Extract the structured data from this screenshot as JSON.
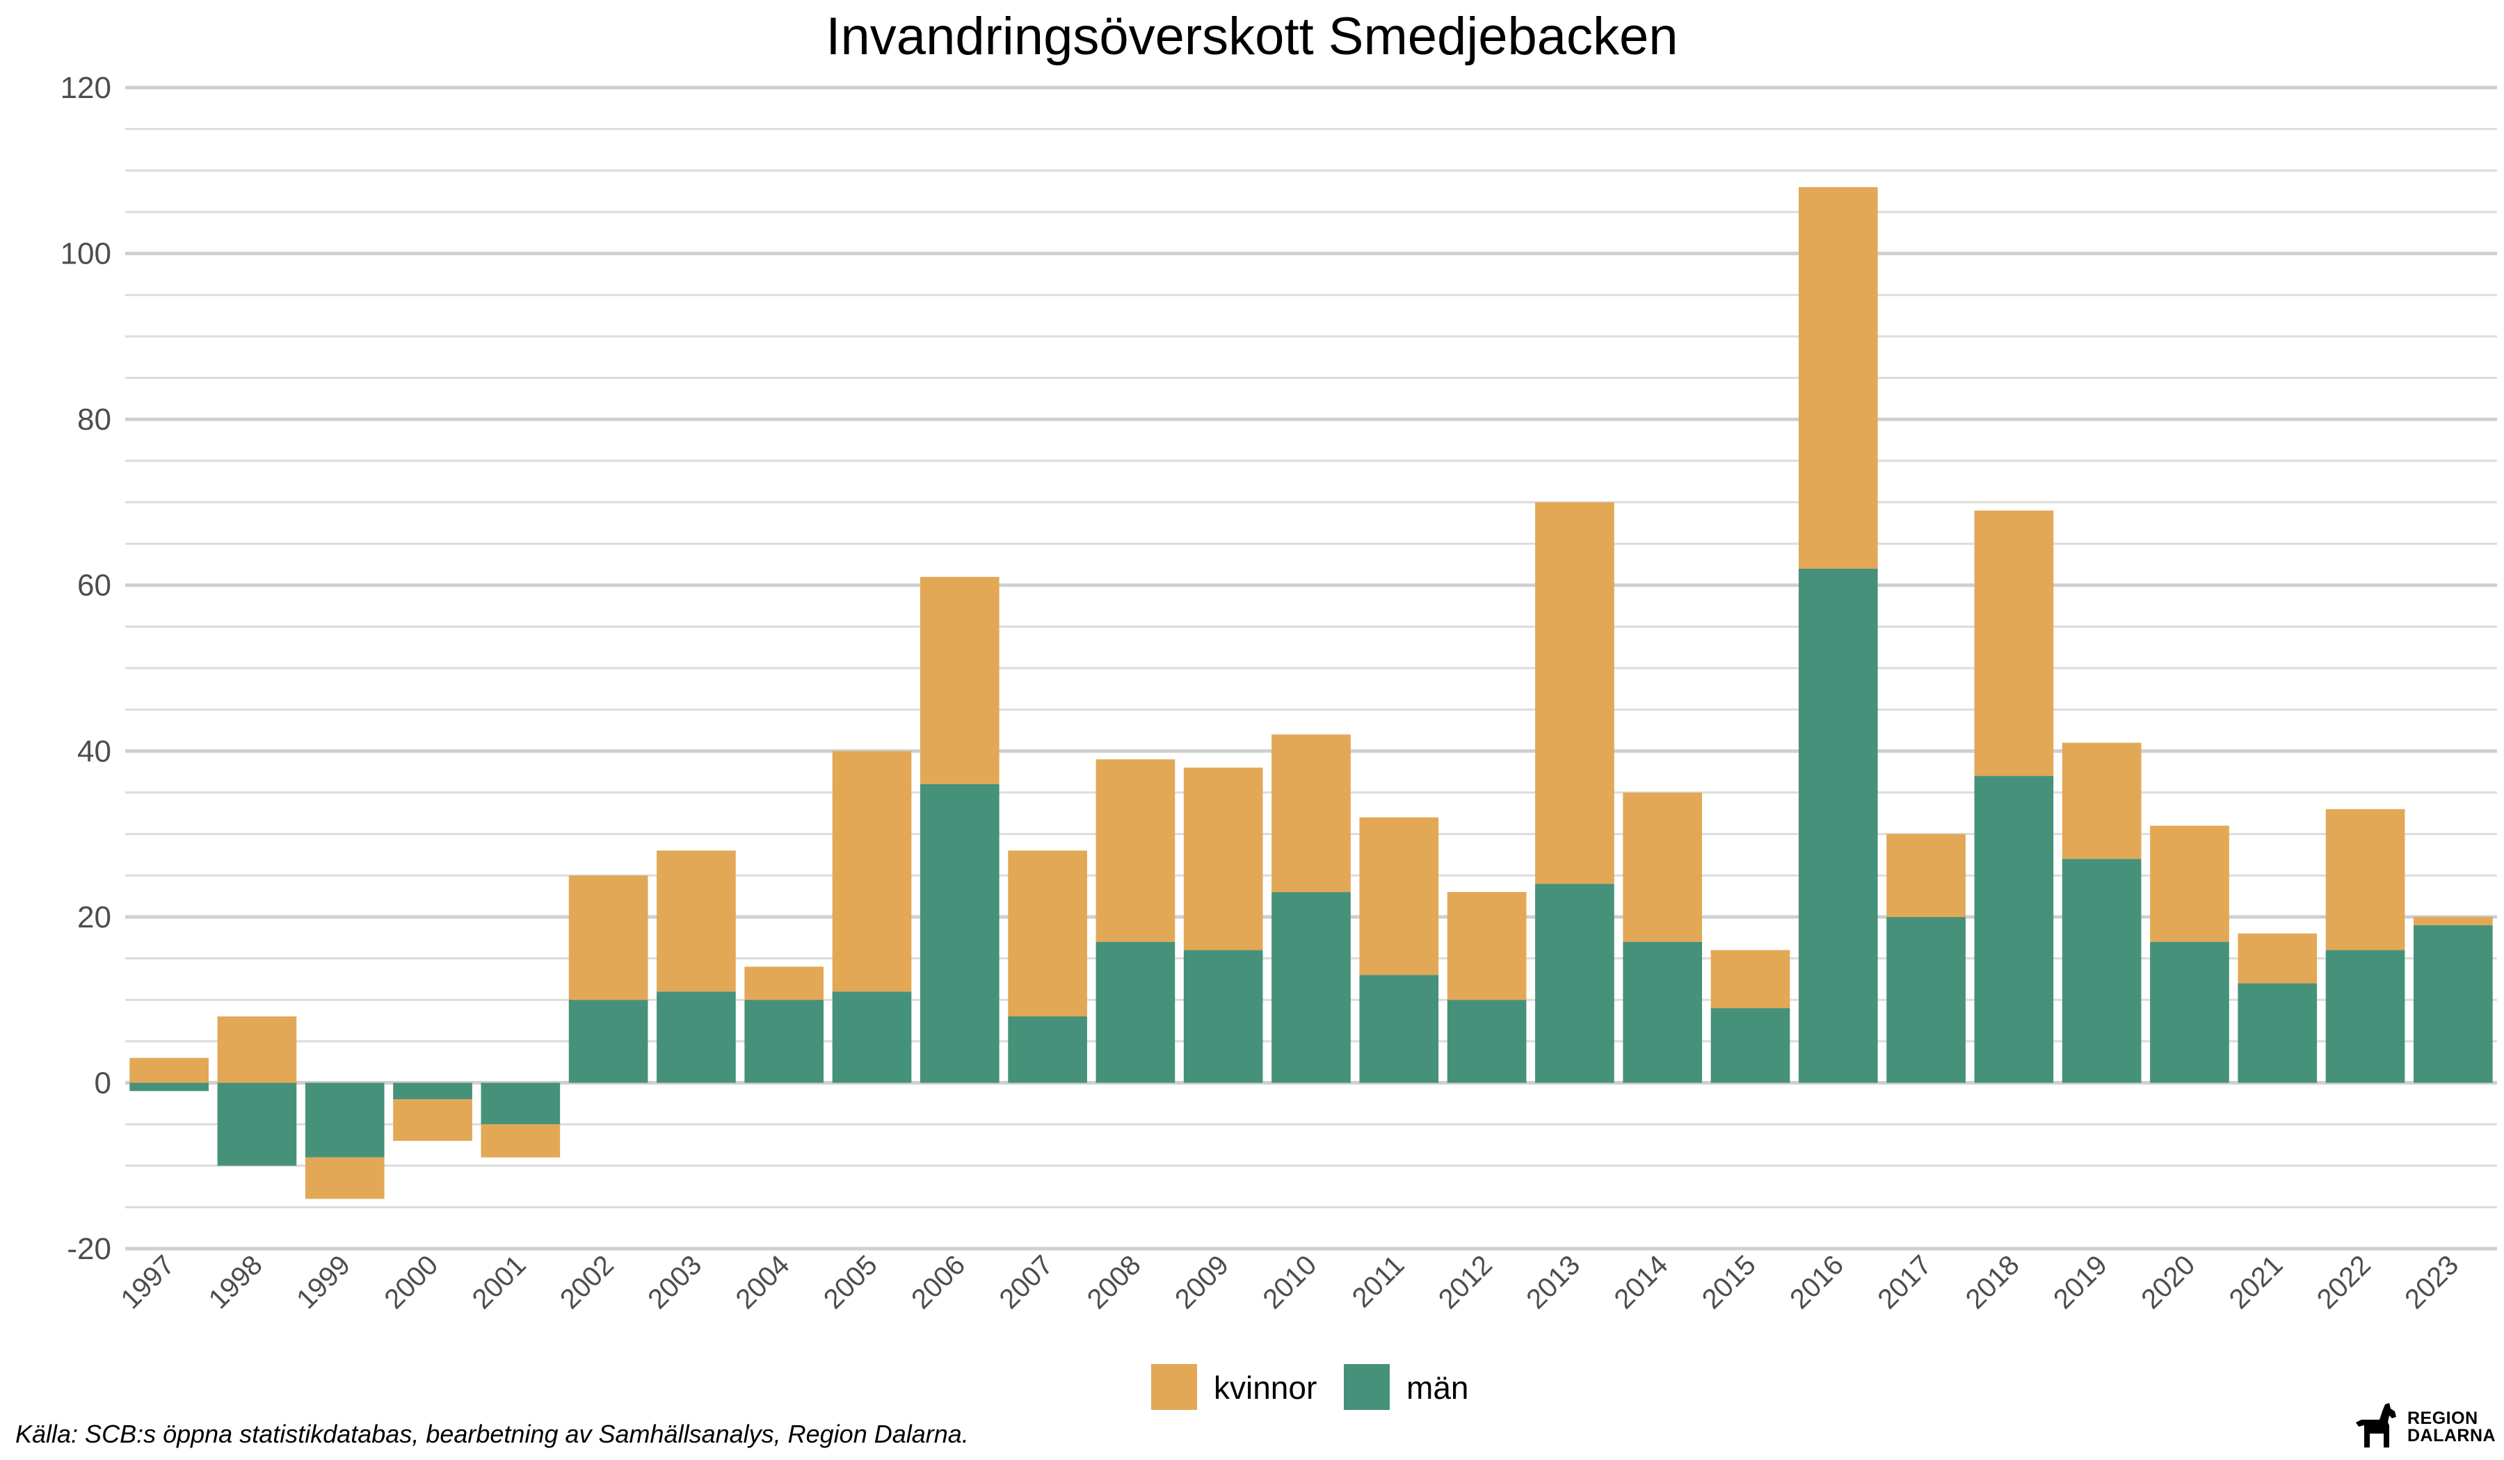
{
  "chart_data": {
    "type": "bar",
    "stacked": true,
    "title": "Invandringsöverskott Smedjebacken",
    "xlabel": "",
    "ylabel": "",
    "ylim": [
      -20,
      120
    ],
    "yticks": [
      -20,
      0,
      20,
      40,
      60,
      80,
      100,
      120
    ],
    "grid": true,
    "legend_position": "bottom",
    "categories": [
      "1997",
      "1998",
      "1999",
      "2000",
      "2001",
      "2002",
      "2003",
      "2004",
      "2005",
      "2006",
      "2007",
      "2008",
      "2009",
      "2010",
      "2011",
      "2012",
      "2013",
      "2014",
      "2015",
      "2016",
      "2017",
      "2018",
      "2019",
      "2020",
      "2021",
      "2022",
      "2023"
    ],
    "series": [
      {
        "name": "män",
        "color": "#46917A",
        "values": [
          -1,
          -10,
          -9,
          -2,
          -5,
          10,
          11,
          10,
          11,
          36,
          8,
          17,
          16,
          23,
          13,
          10,
          24,
          17,
          9,
          62,
          20,
          37,
          27,
          17,
          12,
          16,
          19
        ]
      },
      {
        "name": "kvinnor",
        "color": "#E2A855",
        "values": [
          3,
          8,
          -5,
          -5,
          -4,
          15,
          17,
          4,
          29,
          25,
          20,
          22,
          22,
          19,
          19,
          13,
          46,
          18,
          7,
          46,
          10,
          32,
          14,
          14,
          6,
          17,
          1
        ]
      }
    ],
    "legend_order": [
      "kvinnor",
      "män"
    ]
  },
  "caption": "Källa: SCB:s öppna statistikdatabas, bearbetning av Samhällsanalys, Region Dalarna.",
  "logo": {
    "line1": "REGION",
    "line2": "DALARNA",
    "icon": "dala-horse-icon"
  }
}
